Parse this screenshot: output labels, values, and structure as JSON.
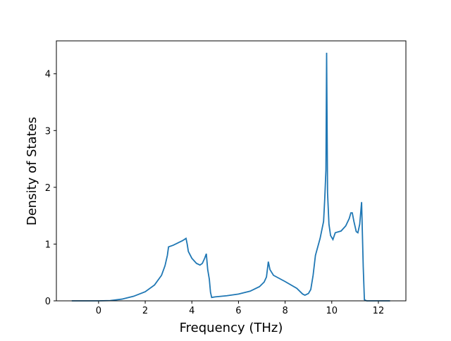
{
  "chart_data": {
    "type": "line",
    "xlabel": "Frequency (THz)",
    "ylabel": "Density of States",
    "xlim": [
      -1.81,
      13.18
    ],
    "ylim": [
      0,
      4.58
    ],
    "xticks": [
      0,
      2,
      4,
      6,
      8,
      10,
      12
    ],
    "yticks": [
      0,
      1,
      2,
      3,
      4
    ],
    "series": [
      {
        "color": "#1f77b4",
        "x": [
          -1.15,
          0,
          0.5,
          1,
          1.5,
          2,
          2.4,
          2.7,
          2.85,
          2.95,
          3.0,
          3.2,
          3.4,
          3.6,
          3.75,
          3.8,
          3.85,
          4.0,
          4.2,
          4.35,
          4.45,
          4.55,
          4.62,
          4.68,
          4.75,
          4.8,
          4.85,
          5.0,
          5.5,
          6.0,
          6.5,
          6.9,
          7.1,
          7.2,
          7.28,
          7.35,
          7.5,
          8.0,
          8.5,
          8.75,
          8.85,
          9.0,
          9.1,
          9.2,
          9.3,
          9.5,
          9.65,
          9.7,
          9.75,
          9.78,
          9.82,
          9.88,
          9.95,
          10.05,
          10.15,
          10.4,
          10.6,
          10.75,
          10.82,
          10.88,
          10.95,
          11.05,
          11.12,
          11.2,
          11.28,
          11.35,
          11.4,
          11.5,
          12.5
        ],
        "values": [
          0,
          0,
          0.005,
          0.03,
          0.08,
          0.16,
          0.28,
          0.45,
          0.62,
          0.8,
          0.95,
          0.98,
          1.02,
          1.06,
          1.1,
          1.0,
          0.87,
          0.75,
          0.66,
          0.63,
          0.66,
          0.75,
          0.83,
          0.55,
          0.38,
          0.15,
          0.06,
          0.07,
          0.09,
          0.12,
          0.17,
          0.25,
          0.33,
          0.42,
          0.69,
          0.55,
          0.45,
          0.34,
          0.22,
          0.12,
          0.1,
          0.13,
          0.2,
          0.45,
          0.8,
          1.1,
          1.4,
          1.8,
          2.3,
          4.37,
          1.9,
          1.35,
          1.15,
          1.08,
          1.2,
          1.23,
          1.32,
          1.45,
          1.55,
          1.55,
          1.4,
          1.22,
          1.2,
          1.35,
          1.74,
          0.6,
          0.02,
          0,
          0
        ]
      }
    ]
  }
}
